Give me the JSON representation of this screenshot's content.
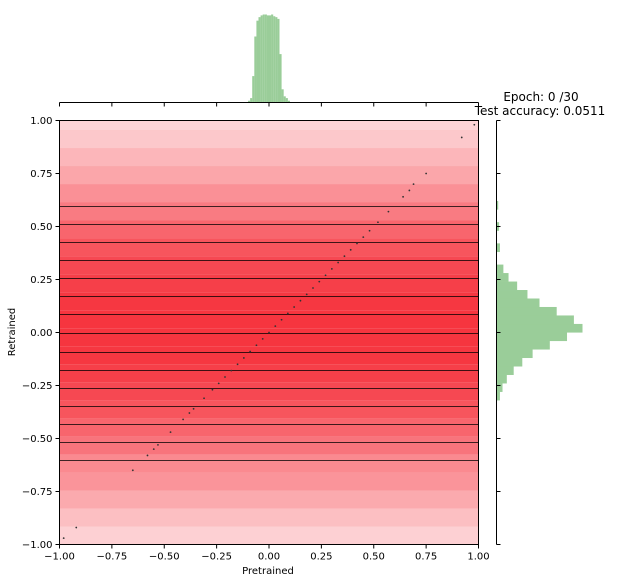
{
  "chart_data": [
    {
      "type": "scatter",
      "xlabel": "Pretrained",
      "ylabel": "Retrained",
      "xlim": [
        -1.0,
        1.0
      ],
      "ylim": [
        -1.0,
        1.0
      ],
      "x_ticks": [
        "−1.00",
        "−0.75",
        "−0.50",
        "−0.25",
        "0.00",
        "0.25",
        "0.50",
        "0.75",
        "1.00"
      ],
      "y_ticks": [
        "−1.00",
        "−0.75",
        "−0.50",
        "−0.25",
        "0.00",
        "0.25",
        "0.50",
        "0.75",
        "1.00"
      ],
      "grid": false,
      "colors": {
        "points": "#333333",
        "band_base": "#f52a35",
        "histogram": "#9acd99"
      },
      "horizontal_bands": {
        "edges": [
          -1.0,
          -0.915,
          -0.83,
          -0.745,
          -0.66,
          -0.575,
          -0.49,
          -0.405,
          -0.32,
          -0.235,
          -0.15,
          -0.065,
          0.02,
          0.105,
          0.19,
          0.275,
          0.36,
          0.445,
          0.53,
          0.615,
          0.7,
          0.785,
          0.87,
          0.955,
          1.0
        ],
        "opacity": [
          0.22,
          0.3,
          0.4,
          0.5,
          0.55,
          0.65,
          0.72,
          0.8,
          0.86,
          0.9,
          0.94,
          0.95,
          0.95,
          0.94,
          0.9,
          0.86,
          0.8,
          0.72,
          0.62,
          0.52,
          0.42,
          0.34,
          0.26,
          0.2
        ]
      },
      "horizontal_lines": [
        -0.6,
        -0.515,
        -0.43,
        -0.345,
        -0.26,
        -0.175,
        -0.09,
        0.0,
        0.085,
        0.17,
        0.255,
        0.34,
        0.425,
        0.51,
        0.595
      ],
      "points": [
        [
          -0.98,
          -0.97
        ],
        [
          -0.92,
          -0.92
        ],
        [
          -0.65,
          -0.65
        ],
        [
          -0.58,
          -0.58
        ],
        [
          -0.55,
          -0.55
        ],
        [
          -0.53,
          -0.53
        ],
        [
          -0.47,
          -0.47
        ],
        [
          -0.41,
          -0.41
        ],
        [
          -0.38,
          -0.38
        ],
        [
          -0.36,
          -0.36
        ],
        [
          -0.31,
          -0.31
        ],
        [
          -0.27,
          -0.27
        ],
        [
          -0.24,
          -0.24
        ],
        [
          -0.21,
          -0.21
        ],
        [
          -0.18,
          -0.18
        ],
        [
          -0.15,
          -0.15
        ],
        [
          -0.12,
          -0.12
        ],
        [
          -0.09,
          -0.09
        ],
        [
          -0.06,
          -0.06
        ],
        [
          -0.03,
          -0.03
        ],
        [
          0.0,
          0.0
        ],
        [
          0.03,
          0.03
        ],
        [
          0.06,
          0.06
        ],
        [
          0.09,
          0.09
        ],
        [
          0.12,
          0.12
        ],
        [
          0.15,
          0.15
        ],
        [
          0.18,
          0.18
        ],
        [
          0.21,
          0.21
        ],
        [
          0.24,
          0.24
        ],
        [
          0.27,
          0.27
        ],
        [
          0.3,
          0.3
        ],
        [
          0.33,
          0.33
        ],
        [
          0.36,
          0.36
        ],
        [
          0.39,
          0.39
        ],
        [
          0.42,
          0.42
        ],
        [
          0.45,
          0.45
        ],
        [
          0.48,
          0.48
        ],
        [
          0.52,
          0.52
        ],
        [
          0.57,
          0.57
        ],
        [
          0.64,
          0.64
        ],
        [
          0.67,
          0.67
        ],
        [
          0.69,
          0.7
        ],
        [
          0.75,
          0.75
        ],
        [
          0.92,
          0.92
        ],
        [
          0.98,
          0.98
        ]
      ]
    },
    {
      "type": "bar",
      "orientation": "vertical",
      "position": "top",
      "xlim": [
        -1.0,
        1.0
      ],
      "bin_centers": [
        -0.095,
        -0.085,
        -0.075,
        -0.065,
        -0.055,
        -0.045,
        -0.035,
        -0.025,
        -0.015,
        -0.005,
        0.005,
        0.015,
        0.025,
        0.035,
        0.045,
        0.055,
        0.065,
        0.075,
        0.085,
        0.095
      ],
      "values": [
        0.02,
        0.05,
        0.3,
        0.75,
        0.93,
        0.97,
        0.99,
        1.0,
        1.0,
        0.99,
        0.99,
        1.0,
        0.98,
        0.97,
        0.95,
        0.55,
        0.15,
        0.07,
        0.05,
        0.02
      ]
    },
    {
      "type": "bar",
      "orientation": "horizontal",
      "position": "right",
      "ylim": [
        -1.0,
        1.0
      ],
      "bin_centers": [
        -0.3,
        -0.26,
        -0.22,
        -0.18,
        -0.14,
        -0.1,
        -0.06,
        -0.02,
        0.02,
        0.06,
        0.1,
        0.14,
        0.18,
        0.22,
        0.26,
        0.3,
        0.4,
        0.5,
        0.6
      ],
      "values": [
        0.04,
        0.07,
        0.12,
        0.2,
        0.3,
        0.42,
        0.62,
        0.82,
        1.0,
        0.9,
        0.7,
        0.5,
        0.36,
        0.24,
        0.14,
        0.08,
        0.04,
        0.03,
        0.02
      ]
    }
  ],
  "header": {
    "epoch_label": "Epoch: 0 /30",
    "accuracy_label": "Test accuracy: 0.0511"
  }
}
